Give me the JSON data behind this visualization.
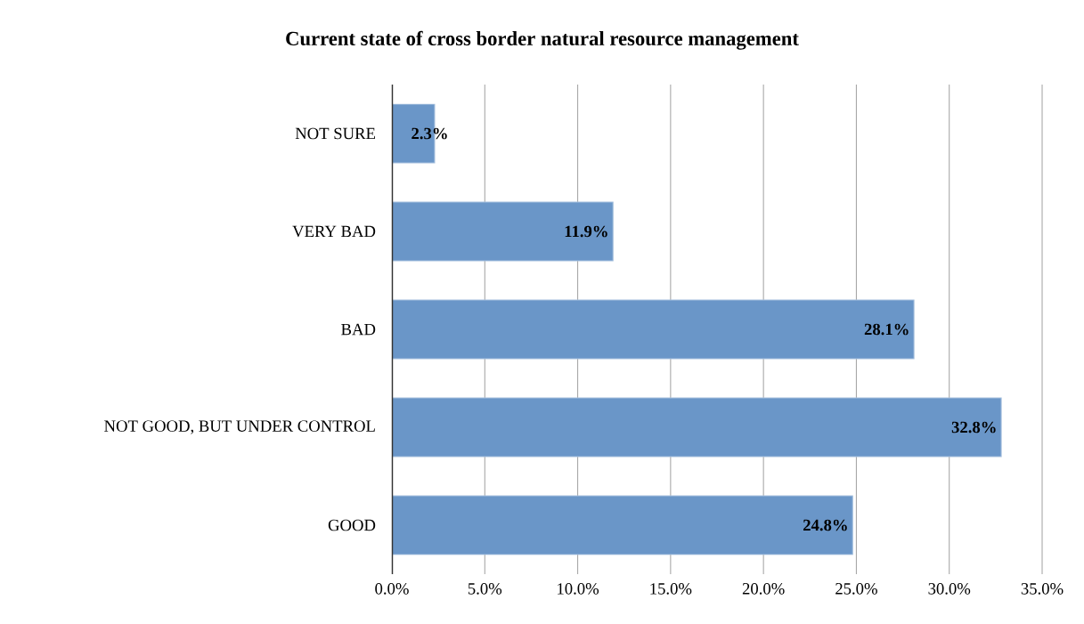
{
  "chart_data": {
    "type": "bar",
    "orientation": "horizontal",
    "title": "Current state of cross border natural resource management",
    "categories": [
      "NOT SURE",
      "VERY BAD",
      "BAD",
      "NOT GOOD, BUT UNDER CONTROL",
      "GOOD"
    ],
    "values": [
      2.3,
      11.9,
      28.1,
      32.8,
      24.8
    ],
    "value_labels": [
      "2.3%",
      "11.9%",
      "28.1%",
      "32.8%",
      "24.8%"
    ],
    "color": "#6a96c8",
    "xlim": [
      0,
      35
    ],
    "xticks": [
      {
        "value": 0,
        "label": "0.0%"
      },
      {
        "value": 5,
        "label": "5.0%"
      },
      {
        "value": 10,
        "label": "10.0%"
      },
      {
        "value": 15,
        "label": "15.0%"
      },
      {
        "value": 20,
        "label": "20.0%"
      },
      {
        "value": 25,
        "label": "25.0%"
      },
      {
        "value": 30,
        "label": "30.0%"
      },
      {
        "value": 35,
        "label": "35.0%"
      }
    ],
    "grid": "x"
  }
}
